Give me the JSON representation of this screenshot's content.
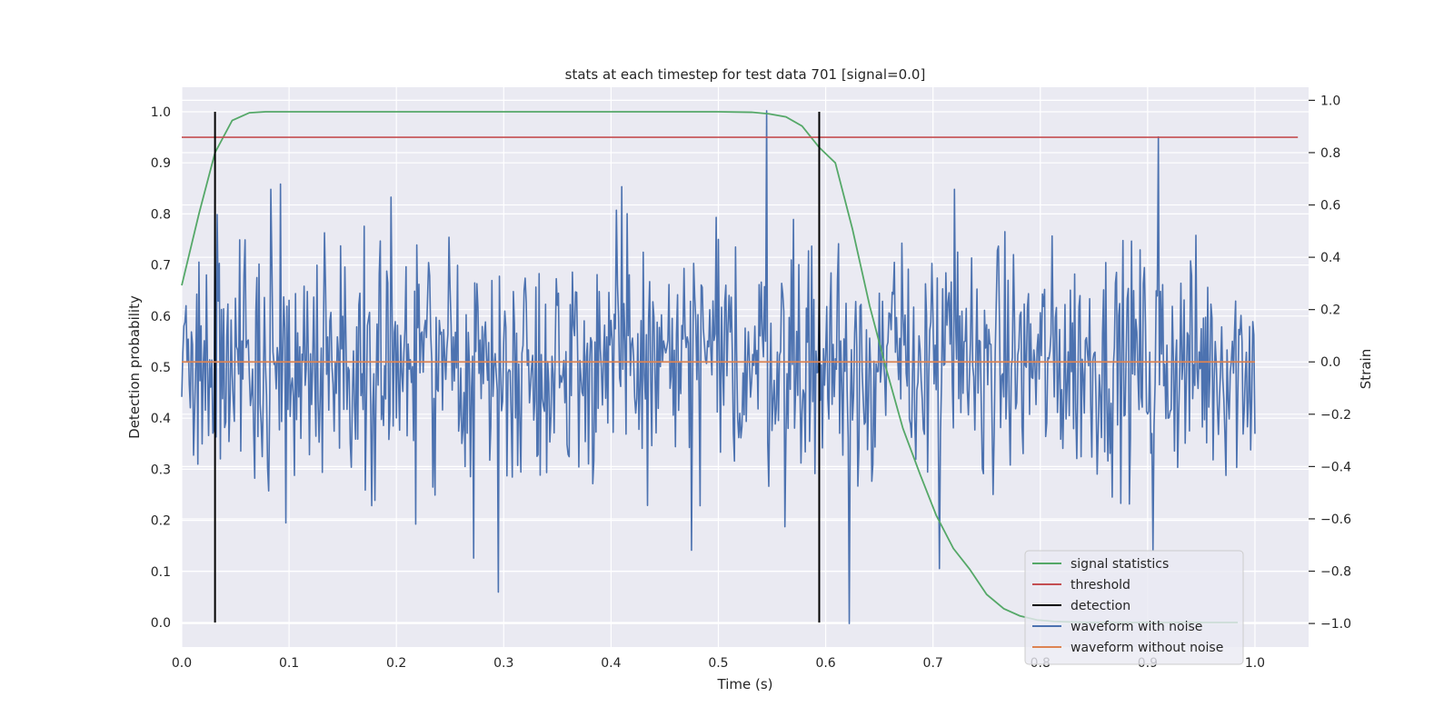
{
  "chart_data": {
    "type": "line",
    "title": "stats at each timestep for test data 701 [signal=0.0]",
    "xlabel": "Time (s)",
    "ylabel_left": "Detection probability",
    "ylabel_right": "Strain",
    "xlim": [
      0.0,
      1.05
    ],
    "ylim_left": [
      -0.048,
      1.048
    ],
    "ylim_right": [
      -1.09,
      1.05
    ],
    "x_ticks": [
      "0.0",
      "0.1",
      "0.2",
      "0.3",
      "0.4",
      "0.5",
      "0.6",
      "0.7",
      "0.8",
      "0.9",
      "1.0"
    ],
    "y_ticks_left": [
      "0.0",
      "0.1",
      "0.2",
      "0.3",
      "0.4",
      "0.5",
      "0.6",
      "0.7",
      "0.8",
      "0.9",
      "1.0"
    ],
    "y_ticks_right": [
      "−1.0",
      "−0.8",
      "−0.6",
      "−0.4",
      "−0.2",
      "0.0",
      "0.2",
      "0.4",
      "0.6",
      "0.8",
      "1.0"
    ],
    "grid": true,
    "legend_position": "lower-right",
    "series": [
      {
        "name": "signal statistics",
        "axis": "left",
        "color": "#55a868",
        "x": [
          0.0,
          0.016,
          0.031,
          0.047,
          0.063,
          0.078,
          0.094,
          0.11,
          0.5,
          0.531,
          0.547,
          0.563,
          0.578,
          0.594,
          0.609,
          0.625,
          0.641,
          0.656,
          0.672,
          0.688,
          0.703,
          0.719,
          0.734,
          0.75,
          0.766,
          0.781,
          0.797,
          0.813,
          0.828,
          0.844,
          0.86,
          0.875,
          0.891,
          0.906,
          0.922,
          0.938,
          0.953,
          0.969,
          0.984
        ],
        "values": [
          0.66,
          0.8,
          0.92,
          0.983,
          0.998,
          1.0,
          1.0,
          1.0,
          1.0,
          0.999,
          0.996,
          0.99,
          0.972,
          0.93,
          0.9,
          0.77,
          0.62,
          0.5,
          0.38,
          0.29,
          0.21,
          0.145,
          0.105,
          0.055,
          0.027,
          0.013,
          0.005,
          0.002,
          0.001,
          0.0,
          0.0,
          0.0,
          0.0,
          0.0,
          0.0,
          0.0,
          0.0,
          0.0,
          0.0
        ]
      },
      {
        "name": "threshold",
        "axis": "left",
        "color": "#c44e52",
        "x": [
          0.0,
          1.04
        ],
        "values": [
          0.95,
          0.95
        ]
      },
      {
        "name": "detection",
        "axis": "left",
        "color": "#000000",
        "vlines": [
          0.031,
          0.594
        ],
        "ymin": 0.0,
        "ymax": 1.0
      },
      {
        "name": "waveform with noise",
        "axis": "right",
        "color": "#4c72b0",
        "x_range": [
          0.0,
          1.0
        ],
        "samples": 1000,
        "approx_amplitude": 0.22,
        "peaks": [
          {
            "x": 0.031,
            "value": 0.62
          },
          {
            "x": 0.083,
            "value": 0.66
          },
          {
            "x": 0.092,
            "value": 0.68
          },
          {
            "x": 0.195,
            "value": 0.63
          },
          {
            "x": 0.218,
            "value": -0.62
          },
          {
            "x": 0.272,
            "value": -0.75
          },
          {
            "x": 0.295,
            "value": -0.88
          },
          {
            "x": 0.41,
            "value": 0.67
          },
          {
            "x": 0.475,
            "value": -0.72
          },
          {
            "x": 0.545,
            "value": 0.96
          },
          {
            "x": 0.622,
            "value": -1.0
          },
          {
            "x": 0.706,
            "value": -0.79
          },
          {
            "x": 0.72,
            "value": 0.66
          },
          {
            "x": 0.91,
            "value": 0.86
          },
          {
            "x": 0.905,
            "value": -0.72
          }
        ]
      },
      {
        "name": "waveform without noise",
        "axis": "right",
        "color": "#dd8452",
        "x": [
          0.0,
          1.0
        ],
        "values": [
          0.0,
          0.0
        ]
      }
    ]
  }
}
